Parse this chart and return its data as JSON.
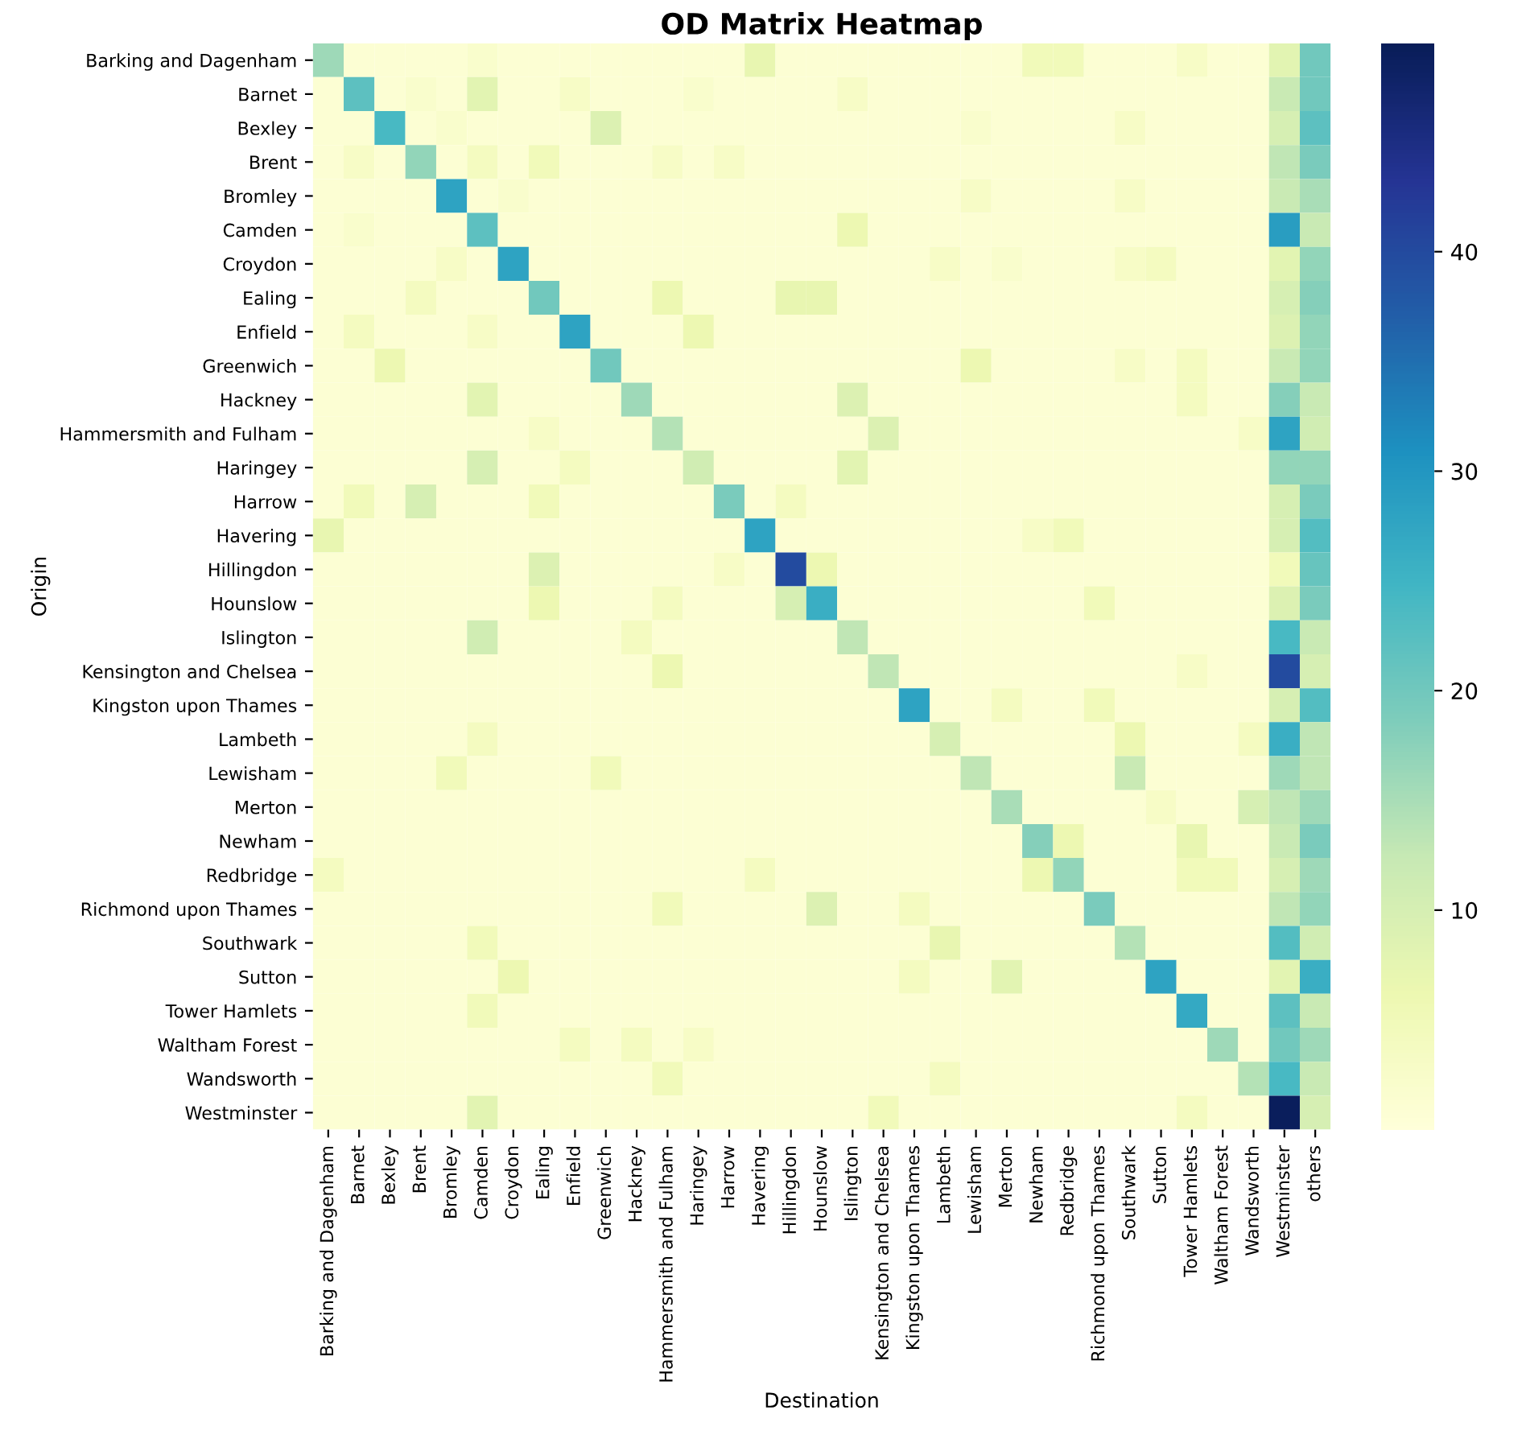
{
  "chart_data": {
    "type": "heatmap",
    "title": "OD Matrix Heatmap",
    "xlabel": "Destination",
    "ylabel": "Origin",
    "categories": [
      "Barking and Dagenham",
      "Barnet",
      "Bexley",
      "Brent",
      "Bromley",
      "Camden",
      "Croydon",
      "Ealing",
      "Enfield",
      "Greenwich",
      "Hackney",
      "Hammersmith and Fulham",
      "Haringey",
      "Harrow",
      "Havering",
      "Hillingdon",
      "Hounslow",
      "Islington",
      "Kensington and Chelsea",
      "Kingston upon Thames",
      "Lambeth",
      "Lewisham",
      "Merton",
      "Newham",
      "Redbridge",
      "Richmond upon Thames",
      "Southwark",
      "Sutton",
      "Tower Hamlets",
      "Waltham Forest",
      "Wandsworth",
      "Westminster",
      "others"
    ],
    "y_categories": [
      "Barking and Dagenham",
      "Barnet",
      "Bexley",
      "Brent",
      "Bromley",
      "Camden",
      "Croydon",
      "Ealing",
      "Enfield",
      "Greenwich",
      "Hackney",
      "Hammersmith and Fulham",
      "Haringey",
      "Harrow",
      "Havering",
      "Hillingdon",
      "Hounslow",
      "Islington",
      "Kensington and Chelsea",
      "Kingston upon Thames",
      "Lambeth",
      "Lewisham",
      "Merton",
      "Newham",
      "Redbridge",
      "Richmond upon Thames",
      "Southwark",
      "Sutton",
      "Tower Hamlets",
      "Waltham Forest",
      "Wandsworth",
      "Westminster"
    ],
    "cells": [
      [
        16,
        1,
        1,
        1,
        1,
        2,
        1,
        1,
        1,
        1,
        1,
        1,
        1,
        1,
        7,
        1,
        1,
        1,
        1,
        1,
        1,
        1,
        1,
        5,
        5,
        1,
        1,
        1,
        3,
        1,
        1,
        8,
        20
      ],
      [
        1,
        22,
        1,
        2,
        1,
        8,
        1,
        1,
        3,
        1,
        1,
        1,
        2,
        1,
        1,
        1,
        1,
        3,
        1,
        1,
        1,
        1,
        1,
        1,
        1,
        1,
        1,
        1,
        1,
        1,
        1,
        12,
        20
      ],
      [
        1,
        1,
        24,
        1,
        2,
        1,
        1,
        1,
        1,
        9,
        1,
        1,
        1,
        1,
        1,
        1,
        1,
        1,
        1,
        1,
        1,
        2,
        1,
        1,
        1,
        1,
        3,
        1,
        1,
        1,
        1,
        10,
        22
      ],
      [
        1,
        3,
        1,
        17,
        1,
        4,
        1,
        5,
        1,
        1,
        1,
        3,
        1,
        3,
        1,
        1,
        1,
        1,
        1,
        1,
        1,
        1,
        1,
        1,
        1,
        1,
        1,
        1,
        1,
        1,
        1,
        13,
        19
      ],
      [
        1,
        1,
        1,
        1,
        28,
        1,
        2,
        1,
        1,
        1,
        1,
        1,
        1,
        1,
        1,
        1,
        1,
        1,
        1,
        1,
        1,
        3,
        1,
        1,
        1,
        1,
        3,
        1,
        1,
        1,
        1,
        12,
        15
      ],
      [
        1,
        2,
        1,
        1,
        1,
        22,
        1,
        1,
        1,
        1,
        1,
        1,
        1,
        1,
        1,
        1,
        1,
        6,
        1,
        1,
        1,
        1,
        1,
        1,
        1,
        1,
        1,
        1,
        1,
        1,
        1,
        29,
        12
      ],
      [
        1,
        1,
        1,
        1,
        3,
        1,
        28,
        1,
        1,
        1,
        1,
        1,
        1,
        1,
        1,
        1,
        1,
        1,
        1,
        1,
        3,
        1,
        2,
        1,
        1,
        1,
        3,
        4,
        1,
        1,
        1,
        8,
        17
      ],
      [
        1,
        1,
        1,
        4,
        1,
        1,
        1,
        20,
        1,
        1,
        1,
        6,
        1,
        1,
        1,
        7,
        7,
        1,
        1,
        1,
        1,
        1,
        1,
        1,
        1,
        1,
        1,
        1,
        1,
        1,
        1,
        10,
        18
      ],
      [
        1,
        4,
        1,
        1,
        1,
        3,
        1,
        1,
        28,
        1,
        1,
        1,
        6,
        1,
        1,
        1,
        1,
        1,
        1,
        1,
        1,
        1,
        1,
        1,
        1,
        1,
        1,
        1,
        1,
        1,
        1,
        9,
        17
      ],
      [
        1,
        1,
        6,
        1,
        1,
        1,
        1,
        1,
        1,
        20,
        1,
        1,
        1,
        1,
        1,
        1,
        1,
        1,
        1,
        1,
        1,
        6,
        1,
        1,
        1,
        1,
        3,
        1,
        4,
        1,
        1,
        12,
        17
      ],
      [
        1,
        1,
        1,
        1,
        1,
        8,
        1,
        1,
        1,
        1,
        16,
        1,
        1,
        1,
        1,
        1,
        1,
        9,
        1,
        1,
        1,
        1,
        1,
        1,
        1,
        1,
        1,
        1,
        4,
        1,
        1,
        18,
        12
      ],
      [
        1,
        1,
        1,
        1,
        1,
        1,
        1,
        3,
        1,
        1,
        1,
        14,
        1,
        1,
        1,
        1,
        1,
        1,
        9,
        1,
        1,
        1,
        1,
        1,
        1,
        1,
        1,
        1,
        1,
        1,
        3,
        28,
        11
      ],
      [
        1,
        1,
        1,
        1,
        1,
        10,
        1,
        1,
        4,
        1,
        1,
        1,
        11,
        1,
        1,
        1,
        1,
        8,
        1,
        1,
        1,
        1,
        1,
        1,
        1,
        1,
        1,
        1,
        1,
        1,
        1,
        17,
        17
      ],
      [
        1,
        5,
        1,
        10,
        1,
        1,
        1,
        5,
        1,
        1,
        1,
        1,
        1,
        19,
        1,
        4,
        1,
        1,
        1,
        1,
        1,
        1,
        1,
        1,
        1,
        1,
        1,
        1,
        1,
        1,
        1,
        10,
        19
      ],
      [
        7,
        1,
        1,
        1,
        1,
        1,
        1,
        1,
        1,
        1,
        1,
        1,
        1,
        1,
        28,
        1,
        1,
        1,
        1,
        1,
        1,
        1,
        1,
        3,
        5,
        1,
        1,
        1,
        1,
        1,
        1,
        10,
        23
      ],
      [
        1,
        1,
        1,
        1,
        1,
        1,
        1,
        9,
        1,
        1,
        1,
        1,
        1,
        3,
        1,
        40,
        6,
        1,
        1,
        1,
        1,
        1,
        1,
        1,
        1,
        1,
        1,
        1,
        1,
        1,
        1,
        5,
        21
      ],
      [
        1,
        1,
        1,
        1,
        1,
        1,
        1,
        6,
        1,
        1,
        1,
        4,
        1,
        1,
        1,
        10,
        26,
        1,
        1,
        1,
        1,
        1,
        1,
        1,
        1,
        5,
        1,
        1,
        1,
        1,
        1,
        9,
        19
      ],
      [
        1,
        1,
        1,
        1,
        1,
        11,
        1,
        1,
        1,
        1,
        4,
        1,
        1,
        1,
        1,
        1,
        1,
        13,
        1,
        1,
        1,
        1,
        1,
        1,
        1,
        1,
        1,
        1,
        1,
        1,
        1,
        24,
        12
      ],
      [
        1,
        1,
        1,
        1,
        1,
        1,
        1,
        1,
        1,
        1,
        1,
        6,
        1,
        1,
        1,
        1,
        1,
        1,
        13,
        1,
        1,
        1,
        1,
        1,
        1,
        1,
        1,
        1,
        3,
        1,
        1,
        40,
        10
      ],
      [
        1,
        1,
        1,
        1,
        1,
        1,
        1,
        1,
        1,
        1,
        1,
        1,
        1,
        1,
        1,
        1,
        1,
        1,
        1,
        28,
        1,
        1,
        4,
        1,
        1,
        5,
        1,
        1,
        1,
        1,
        1,
        10,
        23
      ],
      [
        1,
        1,
        1,
        1,
        1,
        4,
        1,
        1,
        1,
        1,
        1,
        1,
        1,
        1,
        1,
        1,
        1,
        1,
        1,
        1,
        10,
        1,
        1,
        1,
        1,
        1,
        6,
        1,
        1,
        1,
        4,
        26,
        13
      ],
      [
        1,
        1,
        1,
        1,
        5,
        1,
        1,
        1,
        1,
        5,
        1,
        1,
        1,
        1,
        1,
        1,
        1,
        1,
        1,
        1,
        1,
        13,
        1,
        1,
        1,
        1,
        12,
        1,
        1,
        1,
        1,
        16,
        13
      ],
      [
        1,
        1,
        1,
        1,
        1,
        1,
        1,
        1,
        1,
        1,
        1,
        1,
        1,
        1,
        1,
        1,
        1,
        1,
        1,
        1,
        1,
        1,
        15,
        1,
        1,
        1,
        1,
        3,
        1,
        1,
        10,
        13,
        16
      ],
      [
        1,
        1,
        1,
        1,
        1,
        1,
        1,
        1,
        1,
        1,
        1,
        1,
        1,
        1,
        1,
        1,
        1,
        1,
        1,
        1,
        1,
        1,
        1,
        18,
        6,
        1,
        1,
        1,
        7,
        1,
        1,
        12,
        19
      ],
      [
        4,
        1,
        1,
        1,
        1,
        1,
        1,
        1,
        1,
        1,
        1,
        1,
        1,
        1,
        4,
        1,
        1,
        1,
        1,
        1,
        1,
        1,
        1,
        6,
        17,
        1,
        1,
        1,
        5,
        5,
        1,
        10,
        16
      ],
      [
        1,
        1,
        1,
        1,
        1,
        1,
        1,
        1,
        1,
        1,
        1,
        5,
        1,
        1,
        1,
        1,
        9,
        1,
        1,
        4,
        1,
        1,
        1,
        1,
        1,
        19,
        1,
        1,
        1,
        1,
        1,
        13,
        17
      ],
      [
        1,
        1,
        1,
        1,
        1,
        5,
        1,
        1,
        1,
        1,
        1,
        1,
        1,
        1,
        1,
        1,
        1,
        1,
        1,
        1,
        7,
        1,
        1,
        1,
        1,
        1,
        14,
        1,
        1,
        1,
        1,
        23,
        11
      ],
      [
        1,
        1,
        1,
        1,
        1,
        1,
        6,
        1,
        1,
        1,
        1,
        1,
        1,
        1,
        1,
        1,
        1,
        1,
        1,
        4,
        1,
        1,
        8,
        1,
        1,
        1,
        1,
        28,
        1,
        1,
        1,
        8,
        26
      ],
      [
        1,
        1,
        1,
        1,
        1,
        5,
        1,
        1,
        1,
        1,
        1,
        1,
        1,
        1,
        1,
        1,
        1,
        1,
        1,
        1,
        1,
        1,
        1,
        1,
        1,
        1,
        1,
        1,
        27,
        1,
        1,
        22,
        12
      ],
      [
        1,
        1,
        1,
        1,
        1,
        1,
        1,
        1,
        4,
        1,
        4,
        1,
        3,
        1,
        1,
        1,
        1,
        1,
        1,
        1,
        1,
        1,
        1,
        1,
        1,
        1,
        1,
        1,
        1,
        16,
        1,
        20,
        16
      ],
      [
        1,
        1,
        1,
        1,
        1,
        1,
        1,
        1,
        1,
        1,
        1,
        5,
        1,
        1,
        1,
        1,
        1,
        1,
        1,
        1,
        4,
        1,
        1,
        1,
        1,
        1,
        1,
        1,
        1,
        1,
        14,
        24,
        12
      ],
      [
        1,
        1,
        1,
        1,
        1,
        8,
        1,
        1,
        1,
        1,
        1,
        1,
        1,
        1,
        1,
        1,
        1,
        1,
        5,
        1,
        1,
        1,
        1,
        1,
        1,
        1,
        1,
        1,
        4,
        1,
        1,
        49,
        10
      ]
    ],
    "clim": [
      0,
      49.5
    ],
    "cticks": [
      10,
      20,
      30,
      40
    ]
  }
}
